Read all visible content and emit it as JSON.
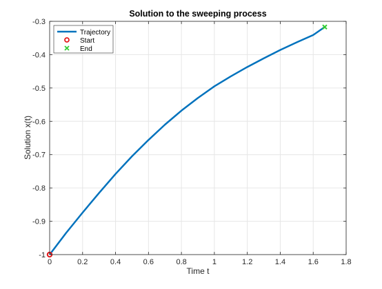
{
  "chart_data": {
    "type": "line",
    "title": "Solution to the sweeping process",
    "xlabel": "Time t",
    "ylabel": "Solution x(t)",
    "xlim": [
      0,
      1.8
    ],
    "ylim": [
      -1,
      -0.3
    ],
    "xticks": [
      0,
      0.2,
      0.4,
      0.6,
      0.8,
      1,
      1.2,
      1.4,
      1.6,
      1.8
    ],
    "xtick_labels": [
      "0",
      "0.2",
      "0.4",
      "0.6",
      "0.8",
      "1",
      "1.2",
      "1.4",
      "1.6",
      "1.8"
    ],
    "yticks": [
      -1,
      -0.9,
      -0.8,
      -0.7,
      -0.6,
      -0.5,
      -0.4,
      -0.3
    ],
    "ytick_labels": [
      "-1",
      "-0.9",
      "-0.8",
      "-0.7",
      "-0.6",
      "-0.5",
      "-0.4",
      "-0.3"
    ],
    "grid": true,
    "legend_position": "top-left",
    "series": [
      {
        "name": "Trajectory",
        "color": "#0072BD",
        "x": [
          0,
          0.1,
          0.2,
          0.3,
          0.4,
          0.5,
          0.6,
          0.7,
          0.8,
          0.9,
          1.0,
          1.1,
          1.2,
          1.3,
          1.4,
          1.5,
          1.6,
          1.67
        ],
        "y": [
          -1.0,
          -0.935,
          -0.874,
          -0.815,
          -0.758,
          -0.705,
          -0.656,
          -0.61,
          -0.568,
          -0.53,
          -0.495,
          -0.465,
          -0.437,
          -0.411,
          -0.386,
          -0.363,
          -0.341,
          -0.317
        ]
      }
    ],
    "markers": [
      {
        "name": "Start",
        "shape": "circle",
        "color": "#E31A1C",
        "x": 0,
        "y": -1.0
      },
      {
        "name": "End",
        "shape": "cross",
        "color": "#33CC33",
        "x": 1.67,
        "y": -0.317
      }
    ]
  }
}
